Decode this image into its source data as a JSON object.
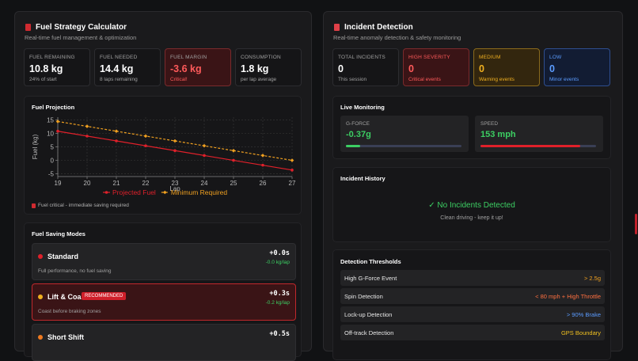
{
  "fuel": {
    "title": "Fuel Strategy Calculator",
    "subtitle": "Real-time fuel management & optimization",
    "stats": [
      {
        "label": "FUEL REMAINING",
        "value": "10.8 kg",
        "note": "24% of start"
      },
      {
        "label": "FUEL NEEDED",
        "value": "14.4 kg",
        "note": "8 laps remaining"
      },
      {
        "label": "FUEL MARGIN",
        "value": "-3.6 kg",
        "note": "Critical!"
      },
      {
        "label": "CONSUMPTION",
        "value": "1.8 kg",
        "note": "per lap average"
      }
    ],
    "projection_note": "Fuel critical - immediate saving required",
    "modes_title": "Fuel Saving Modes",
    "modes": [
      {
        "name": "Standard",
        "time": "+0.0s",
        "saving": "-0.0 kg/lap",
        "description": "Full performance, no fuel saving"
      },
      {
        "name": "Lift & Coast",
        "badge": "RECOMMENDED",
        "time": "+0.3s",
        "saving": "-0.2 kg/lap",
        "description": "Coast before braking zones"
      },
      {
        "name": "Short Shift",
        "time": "+0.5s"
      }
    ]
  },
  "chart_data": {
    "type": "line",
    "title": "Fuel Projection",
    "xlabel": "Lap",
    "ylabel": "Fuel (kg)",
    "x": [
      19,
      20,
      21,
      22,
      23,
      24,
      25,
      26,
      27
    ],
    "series": [
      {
        "name": "Projected Fuel",
        "color": "#e0202a",
        "style": "solid",
        "values": [
          10.8,
          9.0,
          7.2,
          5.4,
          3.6,
          1.8,
          0,
          -1.8,
          -3.6
        ]
      },
      {
        "name": "Minimum Required",
        "color": "#f0a020",
        "style": "dashed",
        "values": [
          14.4,
          12.6,
          10.8,
          9.0,
          7.2,
          5.4,
          3.6,
          1.8,
          0
        ]
      }
    ],
    "xlim": [
      19,
      27
    ],
    "xticks": [
      19,
      20,
      21,
      22,
      23,
      24,
      25,
      26,
      27
    ],
    "ylim": [
      -6,
      16
    ],
    "yticks": [
      -5,
      0,
      5,
      10,
      15
    ],
    "grid": true,
    "legend": "bottom"
  },
  "incidents": {
    "title": "Incident Detection",
    "subtitle": "Real-time anomaly detection & safety monitoring",
    "stats": [
      {
        "label": "TOTAL INCIDENTS",
        "value": "0",
        "note": "This session"
      },
      {
        "label": "HIGH SEVERITY",
        "value": "0",
        "note": "Critical events"
      },
      {
        "label": "MEDIUM",
        "value": "0",
        "note": "Warning events"
      },
      {
        "label": "LOW",
        "value": "0",
        "note": "Minor events"
      }
    ],
    "live_title": "Live Monitoring",
    "gauges": [
      {
        "label": "G-FORCE",
        "value": "-0.37g"
      },
      {
        "label": "SPEED",
        "value": "153 mph"
      }
    ],
    "history_title": "Incident History",
    "history_status": "✓ No Incidents Detected",
    "history_note": "Clean driving - keep it up!",
    "thresholds_title": "Detection Thresholds",
    "thresholds": [
      {
        "name": "High G-Force Event",
        "rule": "> 2.5g"
      },
      {
        "name": "Spin Detection",
        "rule": "< 80 mph + High Throttle"
      },
      {
        "name": "Lock-up Detection",
        "rule": "> 90% Brake"
      },
      {
        "name": "Off-track Detection",
        "rule": "GPS Boundary"
      }
    ]
  }
}
